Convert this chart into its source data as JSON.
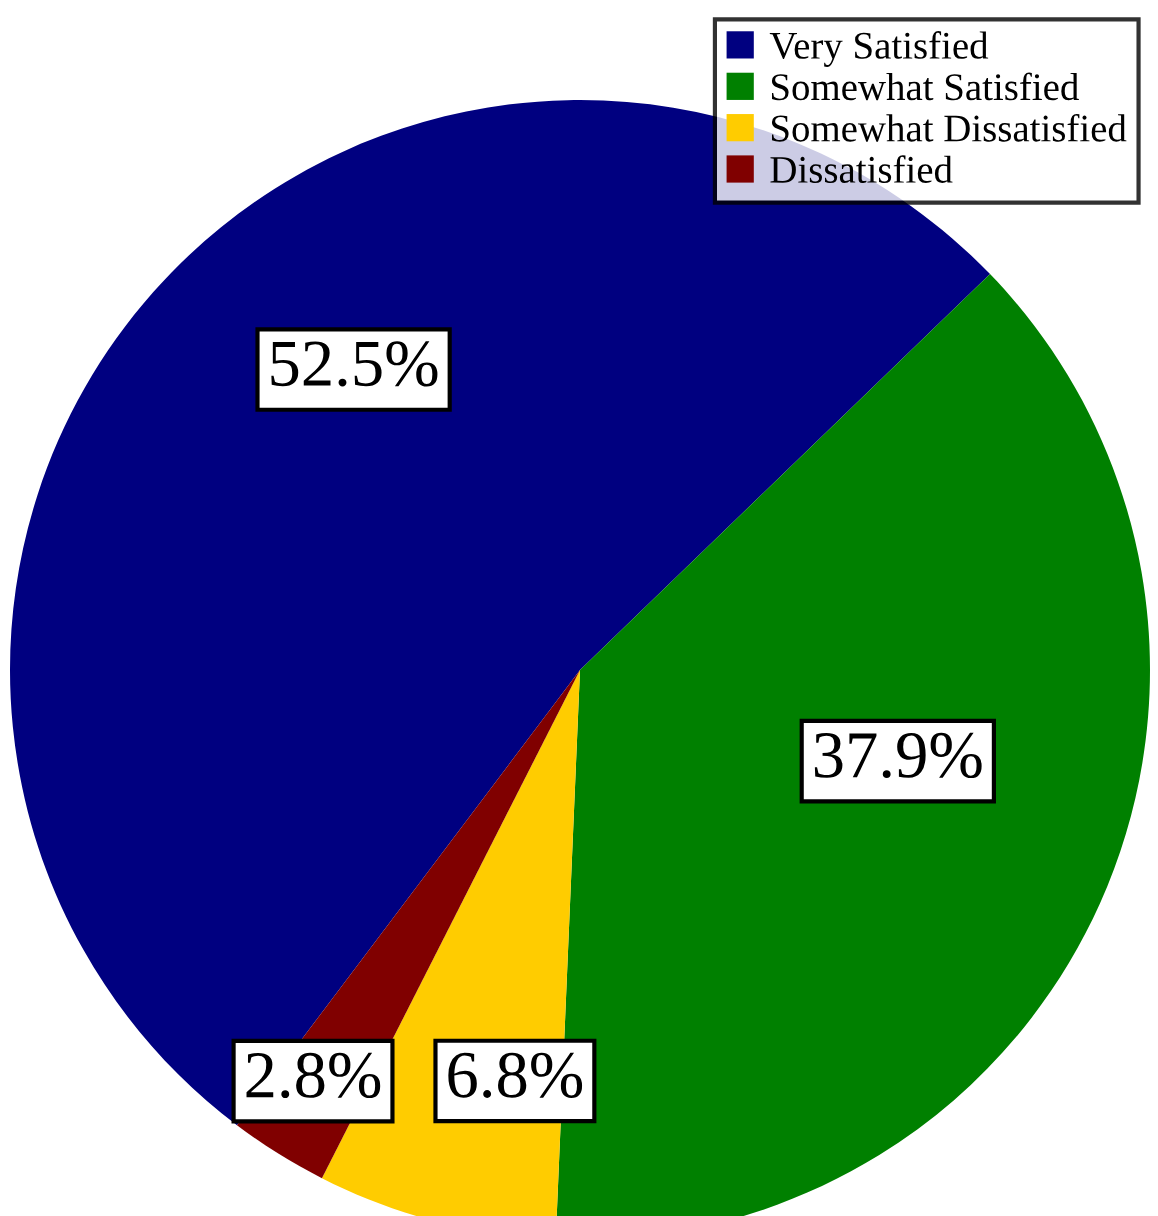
{
  "chart_data": {
    "type": "pie",
    "categories": [
      "Very Satisfied",
      "Somewhat Satisfied",
      "Somewhat Dissatisfied",
      "Dissatisfied"
    ],
    "values": [
      52.5,
      37.9,
      6.8,
      2.8
    ],
    "colors": [
      "#000080",
      "#008000",
      "#ffcc00",
      "#800000"
    ],
    "value_labels": [
      "52.5%",
      "37.9%",
      "6.8%",
      "2.8%"
    ],
    "legend": "top right"
  }
}
